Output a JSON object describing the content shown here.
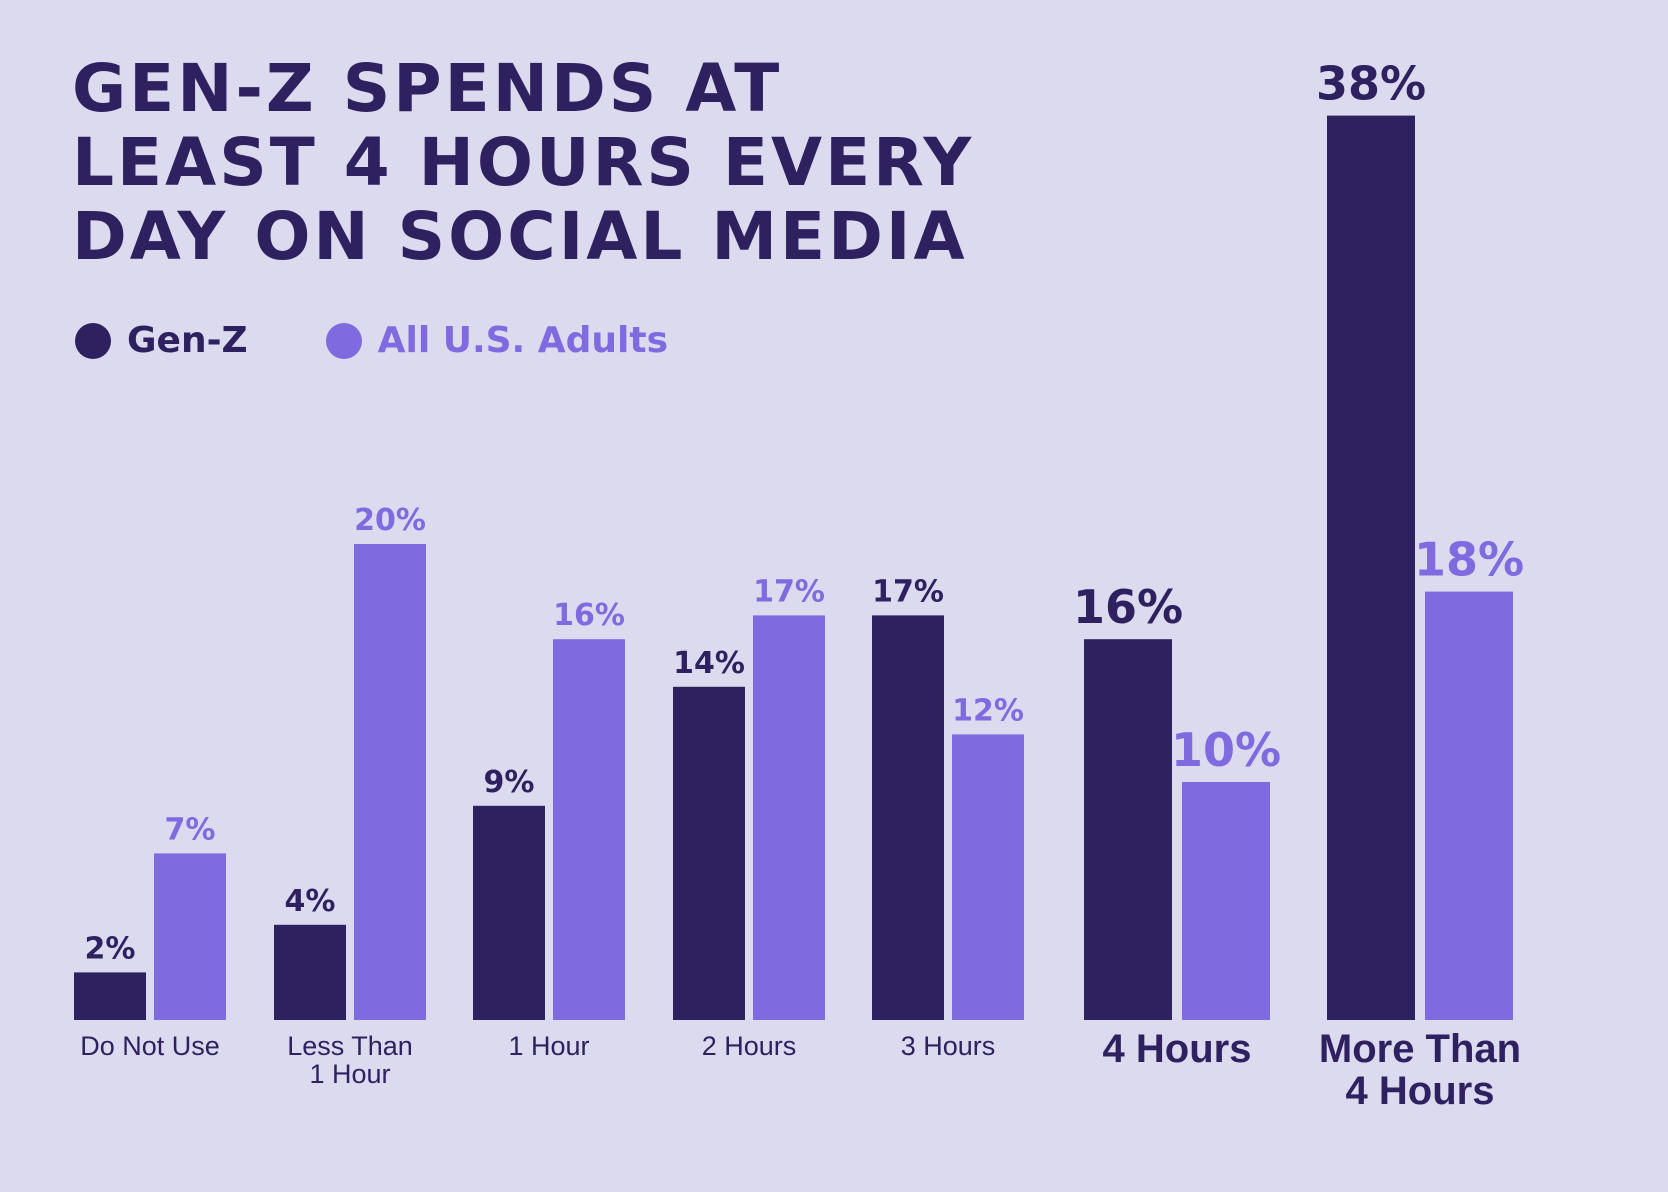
{
  "title": [
    "GEN-Z SPENDS AT",
    "LEAST 4 HOURS EVERY",
    "DAY ON SOCIAL MEDIA"
  ],
  "colors": {
    "background": "#dbdaee",
    "genz": "#2f2160",
    "adults": "#806ae0"
  },
  "chart_data": {
    "type": "bar",
    "title": "GEN-Z SPENDS AT LEAST 4 HOURS EVERY DAY ON SOCIAL MEDIA",
    "legend_placement": "top-left",
    "grid": false,
    "ylim": [
      0,
      40
    ],
    "categories": [
      "Do Not Use",
      "Less Than 1 Hour",
      "1 Hour",
      "2 Hours",
      "3 Hours",
      "4 Hours",
      "More Than 4 Hours"
    ],
    "category_lines": [
      [
        "Do Not Use"
      ],
      [
        "Less Than",
        "1 Hour"
      ],
      [
        "1 Hour"
      ],
      [
        "2 Hours"
      ],
      [
        "3 Hours"
      ],
      [
        "4 Hours"
      ],
      [
        "More Than",
        "4 Hours"
      ]
    ],
    "emphasized_categories": [
      "4 Hours",
      "More Than 4 Hours"
    ],
    "series": [
      {
        "name": "Gen-Z",
        "color": "#2f2160",
        "values": [
          2,
          4,
          9,
          14,
          17,
          16,
          38
        ],
        "labels": [
          "2%",
          "4%",
          "9%",
          "14%",
          "17%",
          "16%",
          "38%"
        ]
      },
      {
        "name": "All U.S. Adults",
        "color": "#806ae0",
        "values": [
          7,
          20,
          16,
          17,
          12,
          10,
          18
        ],
        "labels": [
          "7%",
          "20%",
          "16%",
          "17%",
          "12%",
          "10%",
          "18%"
        ]
      }
    ]
  }
}
